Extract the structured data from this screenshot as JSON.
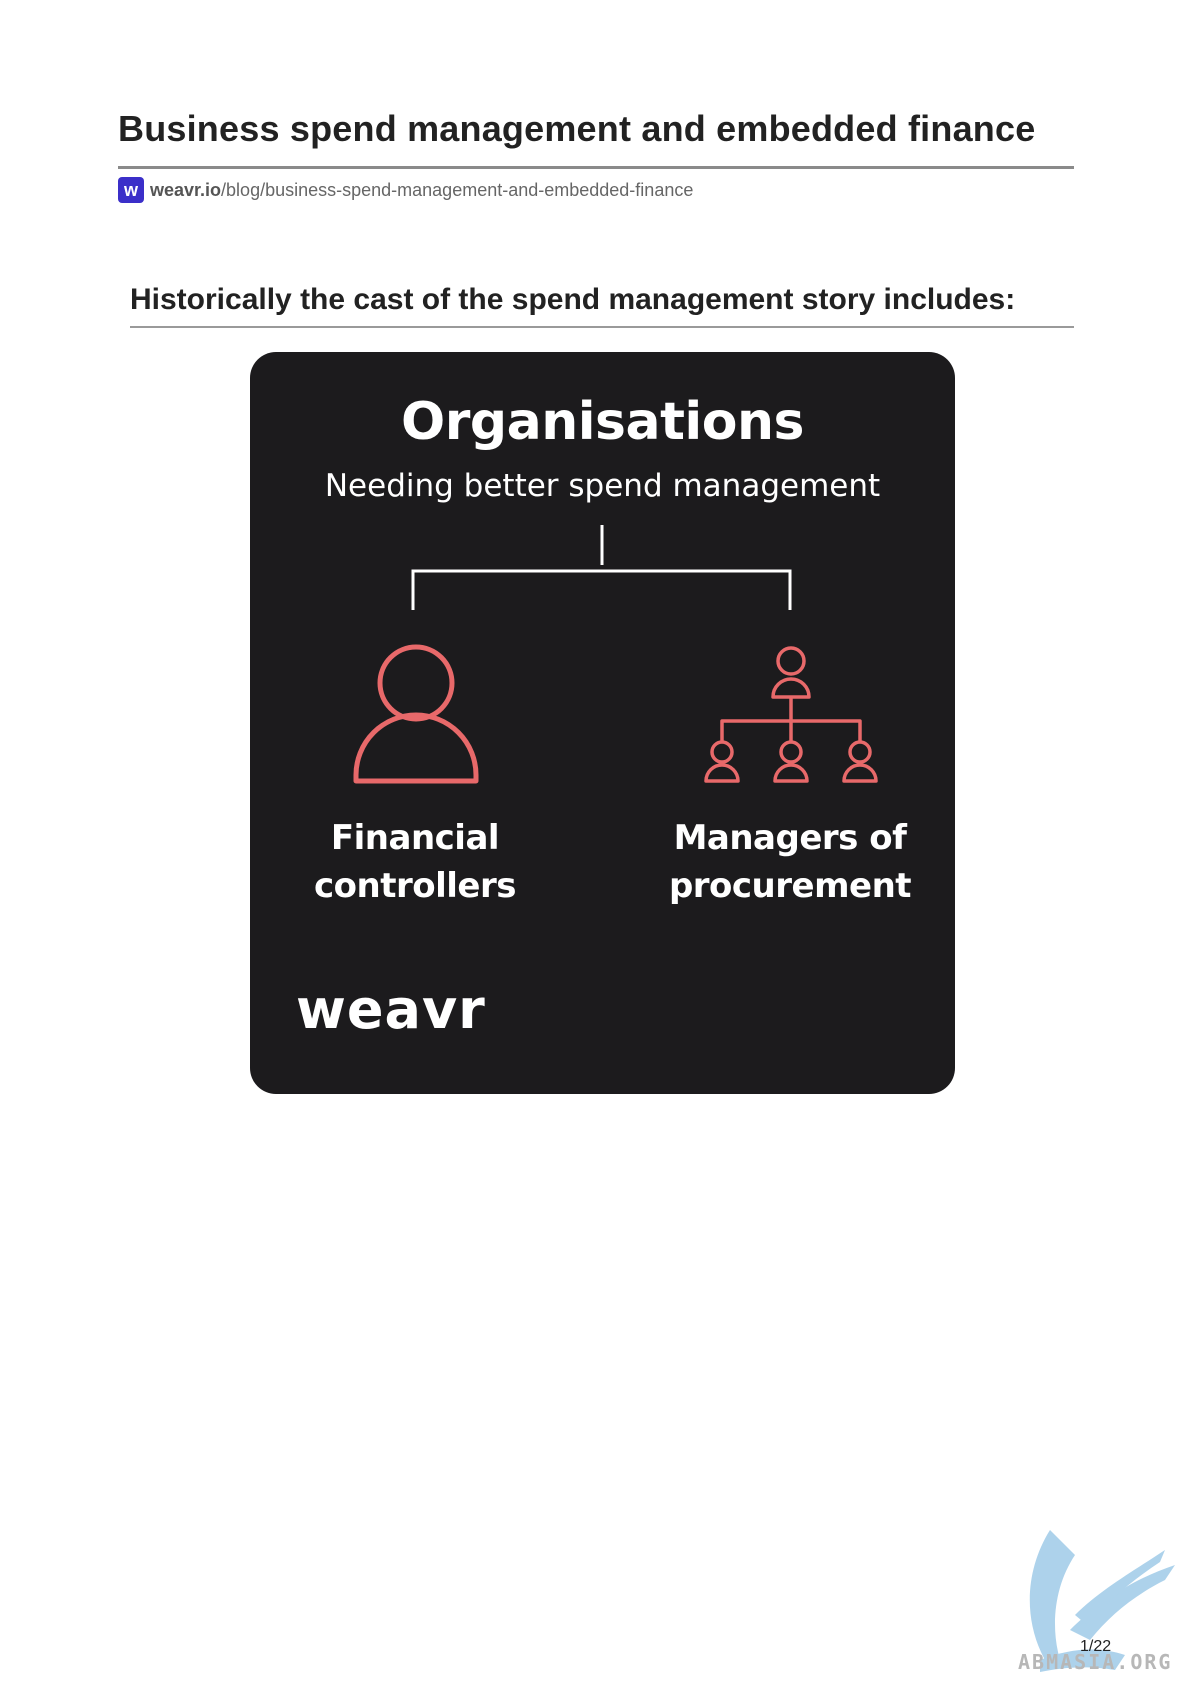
{
  "document": {
    "title": "Business spend management and embedded finance",
    "source_favicon": "w",
    "source_domain": "weavr.io",
    "source_path": "/blog/business-spend-management-and-embedded-finance"
  },
  "section": {
    "heading": "Historically the cast of the spend management story includes:"
  },
  "infographic": {
    "title": "Organisations",
    "subtitle": "Needing better spend management",
    "left_label_line1": "Financial",
    "left_label_line2": "controllers",
    "right_label_line1": "Managers of",
    "right_label_line2": "procurement",
    "left_icon": "person-icon",
    "right_icon": "org-hierarchy-icon",
    "brand": "weavr",
    "colors": {
      "background": "#1c1b1d",
      "icon_stroke": "#e8696a",
      "text": "#ffffff"
    }
  },
  "footer": {
    "page_number": "1/22",
    "watermark_text": "ABMASIA.ORG"
  }
}
